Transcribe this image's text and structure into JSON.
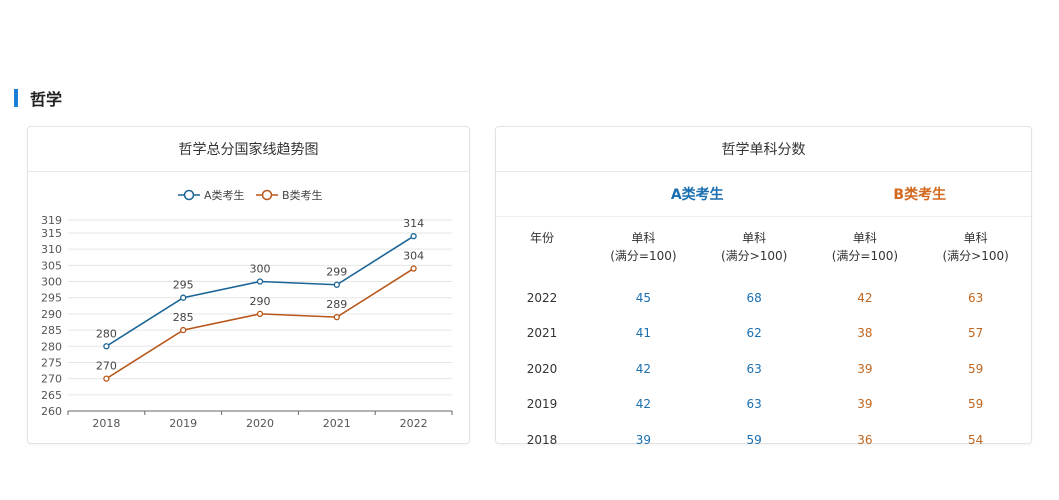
{
  "section": {
    "title": "哲学"
  },
  "chart_card": {
    "title": "哲学总分国家线趋势图"
  },
  "table_card": {
    "title": "哲学单科分数",
    "groups": [
      {
        "label": "A类考生",
        "color": "#1a6fb0"
      },
      {
        "label": "B类考生",
        "color": "#d2691e"
      }
    ],
    "headers": [
      "年份",
      "单科\n(满分=100)",
      "单科\n(满分>100)",
      "单科\n(满分=100)",
      "单科\n(满分>100)"
    ],
    "rows": [
      [
        "2022",
        "45",
        "68",
        "42",
        "63"
      ],
      [
        "2021",
        "41",
        "62",
        "38",
        "57"
      ],
      [
        "2020",
        "42",
        "63",
        "39",
        "59"
      ],
      [
        "2019",
        "42",
        "63",
        "39",
        "59"
      ],
      [
        "2018",
        "39",
        "59",
        "36",
        "54"
      ]
    ]
  },
  "chart_data": {
    "type": "line",
    "title": "哲学总分国家线趋势图",
    "categories": [
      "2018",
      "2019",
      "2020",
      "2021",
      "2022"
    ],
    "series": [
      {
        "name": "A类考生",
        "values": [
          280,
          295,
          300,
          299,
          314
        ],
        "color": "#1a6496"
      },
      {
        "name": "B类考生",
        "values": [
          270,
          285,
          290,
          289,
          304
        ],
        "color": "#b8561a"
      }
    ],
    "ylim": [
      260,
      319
    ],
    "yticks": [
      "260",
      "265",
      "270",
      "275",
      "280",
      "285",
      "290",
      "295",
      "300",
      "305",
      "310",
      "315",
      "319"
    ],
    "legend": "top-center",
    "grid": true,
    "data_labels": true
  }
}
